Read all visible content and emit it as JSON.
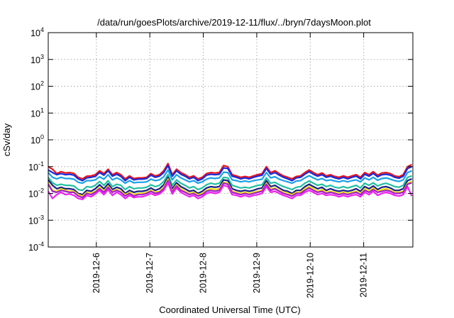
{
  "chart_data": {
    "type": "line",
    "title": "/data/run/goesPlots/archive/2019-12-11/flux/../bryn/7daysMoon.plot",
    "xlabel": "Coordinated Universal Time (UTC)",
    "ylabel": "cSv/day",
    "y_scale": "log",
    "ylim_exponents": [
      -4,
      4
    ],
    "y_tick_labels": [
      {
        "base": "10",
        "exp": "4"
      },
      {
        "base": "10",
        "exp": "3"
      },
      {
        "base": "10",
        "exp": "2"
      },
      {
        "base": "10",
        "exp": "1"
      },
      {
        "base": "10",
        "exp": "0"
      },
      {
        "base": "10",
        "exp": "-1"
      },
      {
        "base": "10",
        "exp": "-2"
      },
      {
        "base": "10",
        "exp": "-3"
      },
      {
        "base": "10",
        "exp": "-4"
      }
    ],
    "x_tick_labels": [
      "2019-12-6",
      "2019-12-7",
      "2019-12-8",
      "2019-12-9",
      "2019-12-10",
      "2019-12-11"
    ],
    "x_tick_days": [
      6,
      7,
      8,
      9,
      10,
      11
    ],
    "xlim_days": [
      5.1,
      11.92
    ],
    "grid": true,
    "legend": "none",
    "x_days": [
      5.1,
      5.18,
      5.26,
      5.34,
      5.42,
      5.5,
      5.58,
      5.66,
      5.74,
      5.82,
      5.9,
      5.98,
      6.06,
      6.14,
      6.22,
      6.3,
      6.38,
      6.46,
      6.54,
      6.62,
      6.7,
      6.78,
      6.86,
      6.94,
      7.02,
      7.1,
      7.18,
      7.26,
      7.34,
      7.42,
      7.5,
      7.58,
      7.66,
      7.74,
      7.82,
      7.9,
      7.98,
      8.06,
      8.14,
      8.22,
      8.3,
      8.38,
      8.46,
      8.54,
      8.62,
      8.7,
      8.78,
      8.86,
      8.94,
      9.02,
      9.1,
      9.18,
      9.26,
      9.34,
      9.42,
      9.5,
      9.58,
      9.66,
      9.74,
      9.82,
      9.9,
      9.98,
      10.06,
      10.14,
      10.22,
      10.3,
      10.38,
      10.46,
      10.54,
      10.62,
      10.7,
      10.78,
      10.86,
      10.94,
      11.02,
      11.1,
      11.18,
      11.26,
      11.34,
      11.42,
      11.5,
      11.58,
      11.66,
      11.74,
      11.82,
      11.9
    ],
    "series": [
      {
        "color": "#e8141c",
        "values": [
          0.1,
          0.08,
          0.055,
          0.065,
          0.058,
          0.06,
          0.056,
          0.04,
          0.035,
          0.044,
          0.045,
          0.05,
          0.07,
          0.055,
          0.08,
          0.05,
          0.06,
          0.05,
          0.035,
          0.045,
          0.036,
          0.038,
          0.038,
          0.04,
          0.055,
          0.045,
          0.05,
          0.07,
          0.13,
          0.05,
          0.08,
          0.06,
          0.05,
          0.04,
          0.045,
          0.035,
          0.04,
          0.055,
          0.06,
          0.058,
          0.06,
          0.11,
          0.1,
          0.05,
          0.045,
          0.04,
          0.043,
          0.04,
          0.045,
          0.05,
          0.055,
          0.1,
          0.06,
          0.07,
          0.055,
          0.045,
          0.04,
          0.035,
          0.043,
          0.045,
          0.06,
          0.075,
          0.06,
          0.05,
          0.058,
          0.045,
          0.05,
          0.043,
          0.04,
          0.045,
          0.04,
          0.045,
          0.05,
          0.04,
          0.06,
          0.05,
          0.065,
          0.048,
          0.058,
          0.06,
          0.055,
          0.045,
          0.042,
          0.05,
          0.1,
          0.12
        ]
      },
      {
        "color": "#1a2ad8",
        "values": [
          0.075,
          0.06,
          0.05,
          0.055,
          0.05,
          0.052,
          0.048,
          0.035,
          0.03,
          0.038,
          0.04,
          0.043,
          0.06,
          0.048,
          0.07,
          0.044,
          0.052,
          0.043,
          0.03,
          0.04,
          0.032,
          0.034,
          0.034,
          0.036,
          0.048,
          0.04,
          0.044,
          0.06,
          0.11,
          0.044,
          0.07,
          0.052,
          0.044,
          0.035,
          0.04,
          0.03,
          0.035,
          0.048,
          0.052,
          0.05,
          0.052,
          0.09,
          0.085,
          0.044,
          0.04,
          0.035,
          0.038,
          0.035,
          0.04,
          0.044,
          0.048,
          0.085,
          0.052,
          0.06,
          0.048,
          0.04,
          0.035,
          0.03,
          0.038,
          0.04,
          0.052,
          0.065,
          0.052,
          0.044,
          0.05,
          0.04,
          0.044,
          0.038,
          0.035,
          0.04,
          0.035,
          0.04,
          0.044,
          0.035,
          0.052,
          0.044,
          0.056,
          0.042,
          0.05,
          0.052,
          0.048,
          0.04,
          0.037,
          0.044,
          0.085,
          0.1
        ]
      },
      {
        "color": "#1aa0e8",
        "values": [
          0.06,
          0.04,
          0.035,
          0.04,
          0.036,
          0.036,
          0.034,
          0.026,
          0.024,
          0.03,
          0.03,
          0.032,
          0.042,
          0.034,
          0.05,
          0.032,
          0.038,
          0.032,
          0.024,
          0.03,
          0.025,
          0.026,
          0.026,
          0.027,
          0.034,
          0.03,
          0.032,
          0.042,
          0.075,
          0.032,
          0.05,
          0.038,
          0.032,
          0.027,
          0.03,
          0.024,
          0.027,
          0.034,
          0.038,
          0.036,
          0.038,
          0.062,
          0.06,
          0.032,
          0.03,
          0.027,
          0.029,
          0.027,
          0.03,
          0.032,
          0.034,
          0.06,
          0.038,
          0.042,
          0.034,
          0.03,
          0.027,
          0.024,
          0.029,
          0.03,
          0.038,
          0.046,
          0.038,
          0.032,
          0.036,
          0.03,
          0.032,
          0.029,
          0.027,
          0.03,
          0.027,
          0.03,
          0.032,
          0.027,
          0.038,
          0.032,
          0.04,
          0.031,
          0.036,
          0.038,
          0.034,
          0.03,
          0.028,
          0.032,
          0.06,
          0.07
        ]
      },
      {
        "color": "#20c0a0",
        "values": [
          0.04,
          0.025,
          0.02,
          0.022,
          0.02,
          0.02,
          0.019,
          0.014,
          0.013,
          0.018,
          0.017,
          0.02,
          0.028,
          0.02,
          0.03,
          0.018,
          0.022,
          0.02,
          0.014,
          0.018,
          0.015,
          0.016,
          0.016,
          0.017,
          0.021,
          0.018,
          0.02,
          0.028,
          0.05,
          0.02,
          0.032,
          0.024,
          0.02,
          0.016,
          0.018,
          0.014,
          0.016,
          0.021,
          0.024,
          0.022,
          0.024,
          0.04,
          0.038,
          0.02,
          0.018,
          0.016,
          0.017,
          0.016,
          0.018,
          0.02,
          0.021,
          0.038,
          0.024,
          0.026,
          0.021,
          0.018,
          0.016,
          0.014,
          0.017,
          0.018,
          0.024,
          0.029,
          0.024,
          0.02,
          0.022,
          0.018,
          0.02,
          0.017,
          0.016,
          0.018,
          0.016,
          0.018,
          0.02,
          0.016,
          0.024,
          0.02,
          0.025,
          0.019,
          0.022,
          0.024,
          0.021,
          0.018,
          0.017,
          0.02,
          0.04,
          0.045
        ]
      },
      {
        "color": "#1a2080",
        "values": [
          0.032,
          0.02,
          0.015,
          0.017,
          0.015,
          0.015,
          0.014,
          0.01,
          0.009,
          0.013,
          0.012,
          0.015,
          0.021,
          0.015,
          0.023,
          0.014,
          0.017,
          0.015,
          0.01,
          0.013,
          0.011,
          0.012,
          0.012,
          0.013,
          0.016,
          0.013,
          0.015,
          0.021,
          0.04,
          0.015,
          0.025,
          0.018,
          0.015,
          0.012,
          0.013,
          0.01,
          0.012,
          0.016,
          0.018,
          0.017,
          0.018,
          0.032,
          0.03,
          0.015,
          0.013,
          0.012,
          0.013,
          0.012,
          0.013,
          0.015,
          0.016,
          0.03,
          0.018,
          0.02,
          0.016,
          0.013,
          0.012,
          0.01,
          0.013,
          0.013,
          0.018,
          0.022,
          0.018,
          0.015,
          0.017,
          0.013,
          0.015,
          0.013,
          0.012,
          0.013,
          0.012,
          0.013,
          0.015,
          0.012,
          0.018,
          0.015,
          0.019,
          0.014,
          0.017,
          0.018,
          0.016,
          0.013,
          0.013,
          0.015,
          0.03,
          0.035
        ]
      },
      {
        "color": "#f0e010",
        "values": [
          0.025,
          0.013,
          0.012,
          0.015,
          0.013,
          0.012,
          0.012,
          0.009,
          0.008,
          0.011,
          0.01,
          0.012,
          0.017,
          0.012,
          0.019,
          0.012,
          0.014,
          0.012,
          0.009,
          0.011,
          0.009,
          0.01,
          0.01,
          0.011,
          0.013,
          0.011,
          0.012,
          0.017,
          0.034,
          0.012,
          0.021,
          0.015,
          0.012,
          0.01,
          0.011,
          0.009,
          0.01,
          0.013,
          0.015,
          0.014,
          0.015,
          0.026,
          0.024,
          0.012,
          0.011,
          0.01,
          0.011,
          0.01,
          0.011,
          0.012,
          0.013,
          0.024,
          0.015,
          0.016,
          0.013,
          0.011,
          0.01,
          0.009,
          0.011,
          0.011,
          0.015,
          0.018,
          0.015,
          0.012,
          0.014,
          0.011,
          0.012,
          0.011,
          0.01,
          0.011,
          0.01,
          0.011,
          0.012,
          0.01,
          0.015,
          0.012,
          0.016,
          0.012,
          0.014,
          0.015,
          0.013,
          0.011,
          0.011,
          0.012,
          0.024,
          0.028
        ]
      },
      {
        "color": "#a020c8",
        "values": [
          0.022,
          0.012,
          0.011,
          0.013,
          0.012,
          0.011,
          0.011,
          0.008,
          0.007,
          0.01,
          0.009,
          0.011,
          0.015,
          0.011,
          0.017,
          0.011,
          0.013,
          0.011,
          0.008,
          0.01,
          0.008,
          0.009,
          0.009,
          0.01,
          0.012,
          0.01,
          0.011,
          0.015,
          0.03,
          0.011,
          0.019,
          0.013,
          0.011,
          0.009,
          0.01,
          0.008,
          0.009,
          0.012,
          0.013,
          0.012,
          0.013,
          0.024,
          0.022,
          0.011,
          0.01,
          0.009,
          0.01,
          0.009,
          0.01,
          0.011,
          0.012,
          0.022,
          0.013,
          0.015,
          0.012,
          0.01,
          0.009,
          0.008,
          0.01,
          0.01,
          0.013,
          0.016,
          0.013,
          0.011,
          0.012,
          0.01,
          0.011,
          0.01,
          0.009,
          0.01,
          0.009,
          0.01,
          0.011,
          0.009,
          0.013,
          0.011,
          0.014,
          0.011,
          0.012,
          0.013,
          0.012,
          0.01,
          0.01,
          0.011,
          0.022,
          0.025
        ]
      },
      {
        "color": "#f020f0",
        "values": [
          0.012,
          0.0065,
          0.009,
          0.011,
          0.009,
          0.0095,
          0.0085,
          0.0065,
          0.006,
          0.0085,
          0.0075,
          0.0095,
          0.013,
          0.009,
          0.014,
          0.0085,
          0.011,
          0.009,
          0.0065,
          0.0085,
          0.007,
          0.0075,
          0.0075,
          0.0085,
          0.01,
          0.0085,
          0.0095,
          0.013,
          0.025,
          0.0095,
          0.016,
          0.011,
          0.009,
          0.0075,
          0.0085,
          0.0065,
          0.0075,
          0.01,
          0.011,
          0.01,
          0.011,
          0.02,
          0.018,
          0.009,
          0.0085,
          0.0075,
          0.0085,
          0.0075,
          0.0085,
          0.009,
          0.01,
          0.018,
          0.011,
          0.012,
          0.01,
          0.0085,
          0.0075,
          0.0065,
          0.0085,
          0.0085,
          0.011,
          0.013,
          0.011,
          0.009,
          0.01,
          0.0085,
          0.009,
          0.0085,
          0.0075,
          0.0085,
          0.0075,
          0.0085,
          0.009,
          0.0075,
          0.011,
          0.009,
          0.012,
          0.0085,
          0.01,
          0.011,
          0.01,
          0.0085,
          0.008,
          0.009,
          0.018,
          0.008
        ]
      }
    ]
  }
}
